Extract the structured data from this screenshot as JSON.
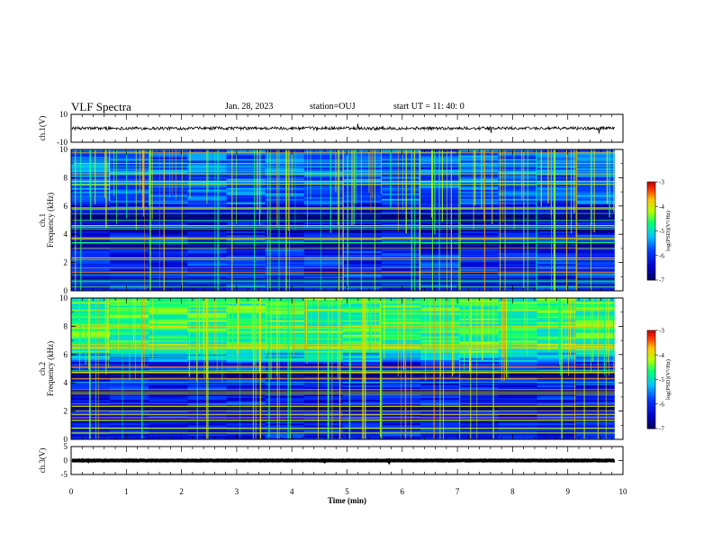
{
  "header": {
    "title": "VLF Spectra",
    "date": "Jan. 28, 2023",
    "station": "station=OUJ",
    "start": "start  UT =   11: 40: 0"
  },
  "chart_data": [
    {
      "type": "line",
      "panel": "waveform-ch1",
      "ylabel": "ch.1(V)",
      "ylim": [
        -10,
        10
      ],
      "yticks": [
        "10",
        "-10"
      ],
      "xlim": [
        0,
        10
      ],
      "series_color": "#000000"
    },
    {
      "type": "heatmap",
      "panel": "spectrogram-ch1",
      "ylabel": "ch.1\nFrequency (kHz)",
      "ylim": [
        0,
        10
      ],
      "yticks": [
        "0",
        "2",
        "4",
        "6",
        "8",
        "10"
      ],
      "xlim": [
        0,
        10
      ],
      "data_end_min": 9.85,
      "colorbar": {
        "label": "log(PSD)(V²/Hz)",
        "range": [
          -7,
          -3
        ],
        "ticks": [
          "-3",
          "-4",
          "-5",
          "-6",
          "-7"
        ]
      }
    },
    {
      "type": "heatmap",
      "panel": "spectrogram-ch2",
      "ylabel": "ch.2\nFrequency (kHz)",
      "ylim": [
        0,
        10
      ],
      "yticks": [
        "0",
        "2",
        "4",
        "6",
        "8",
        "10"
      ],
      "xlim": [
        0,
        10
      ],
      "data_end_min": 9.85,
      "colorbar": {
        "label": "log(PSD)(V²/Hz)",
        "range": [
          -7,
          -3
        ],
        "ticks": [
          "-3",
          "-4",
          "-5",
          "-6",
          "-7"
        ]
      }
    },
    {
      "type": "line",
      "panel": "waveform-ch3",
      "ylabel": "ch.3(V)",
      "ylim": [
        -5,
        5
      ],
      "yticks": [
        "5",
        "0",
        "-5"
      ],
      "xlim": [
        0,
        10
      ],
      "series_color": "#000000"
    }
  ],
  "xaxis": {
    "label": "Time  (min)",
    "ticks": [
      "0",
      "1",
      "2",
      "3",
      "4",
      "5",
      "6",
      "7",
      "8",
      "9",
      "10"
    ]
  }
}
